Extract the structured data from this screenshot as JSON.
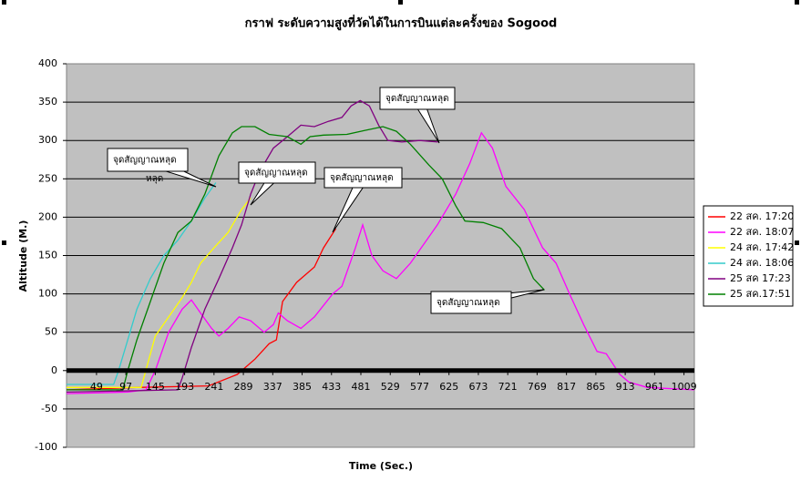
{
  "chart_data": {
    "type": "line",
    "title": "กราฟ ระดับความสูงที่วัดได้ในการบินแต่ละครั้งของ Sogood",
    "x_label": "Time (Sec.)",
    "y_label": "Altitude (M.)",
    "xlim": [
      0,
      1026
    ],
    "ylim": [
      -100,
      400
    ],
    "xticks": [
      49,
      97,
      145,
      193,
      241,
      289,
      337,
      385,
      433,
      481,
      529,
      577,
      625,
      673,
      721,
      769,
      817,
      865,
      913,
      961,
      1009
    ],
    "yticks": [
      -100,
      -50,
      0,
      50,
      100,
      150,
      200,
      250,
      300,
      350,
      400
    ],
    "grid": true,
    "legend": "right",
    "series": [
      {
        "name": "22 สค. 17:20",
        "color": "#ff0000",
        "x": [
          0,
          115,
          232,
          279,
          308,
          331,
          343,
          353,
          376,
          405,
          420,
          440
        ],
        "values": [
          -25,
          -22,
          -20,
          -5,
          15,
          35,
          40,
          90,
          115,
          135,
          160,
          185
        ]
      },
      {
        "name": "22 สค. 18:07",
        "color": "#ff00ff",
        "x": [
          0,
          100,
          130,
          145,
          167,
          189,
          204,
          219,
          237,
          249,
          264,
          282,
          301,
          323,
          338,
          346,
          361,
          383,
          405,
          435,
          450,
          472,
          484,
          499,
          517,
          539,
          562,
          606,
          636,
          659,
          678,
          696,
          718,
          748,
          778,
          800,
          822,
          845,
          867,
          882,
          904,
          919,
          949,
          1026
        ],
        "values": [
          -30,
          -28,
          -25,
          0,
          50,
          80,
          92,
          75,
          55,
          45,
          55,
          70,
          65,
          50,
          60,
          75,
          65,
          55,
          70,
          100,
          110,
          160,
          190,
          150,
          130,
          120,
          140,
          190,
          230,
          270,
          310,
          290,
          240,
          210,
          160,
          140,
          100,
          60,
          25,
          22,
          -5,
          -15,
          -22,
          -25
        ]
      },
      {
        "name": "24 สค. 17:42",
        "color": "#ffff00",
        "x": [
          0,
          122,
          133,
          145,
          167,
          189,
          204,
          219,
          241,
          264,
          286,
          301
        ],
        "values": [
          -22,
          -22,
          10,
          45,
          70,
          95,
          115,
          140,
          160,
          180,
          210,
          225
        ]
      },
      {
        "name": "24 สค. 18:06",
        "color": "#33cccc",
        "x": [
          0,
          77,
          85,
          100,
          115,
          137,
          159,
          182,
          204,
          226,
          244
        ],
        "values": [
          -18,
          -18,
          0,
          40,
          80,
          120,
          150,
          170,
          195,
          225,
          245
        ]
      },
      {
        "name": "25 สค 17:23",
        "color": "#800080",
        "x": [
          0,
          182,
          189,
          204,
          226,
          249,
          271,
          286,
          301,
          316,
          338,
          361,
          383,
          405,
          428,
          450,
          465,
          480,
          495,
          510,
          525,
          548,
          577,
          607
        ],
        "values": [
          -28,
          -25,
          -10,
          30,
          80,
          120,
          160,
          190,
          230,
          260,
          290,
          305,
          320,
          318,
          325,
          330,
          345,
          352,
          345,
          320,
          300,
          298,
          300,
          298
        ]
      },
      {
        "name": "25 สค.17:51",
        "color": "#008000",
        "x": [
          0,
          92,
          100,
          115,
          137,
          159,
          182,
          204,
          226,
          249,
          271,
          286,
          308,
          331,
          361,
          383,
          398,
          420,
          458,
          487,
          517,
          539,
          562,
          592,
          614,
          636,
          651,
          681,
          711,
          741,
          763,
          781
        ],
        "values": [
          -25,
          -25,
          0,
          40,
          90,
          140,
          180,
          195,
          230,
          280,
          310,
          318,
          318,
          308,
          305,
          295,
          305,
          307,
          308,
          313,
          318,
          312,
          295,
          268,
          250,
          215,
          195,
          193,
          185,
          160,
          120,
          105
        ]
      }
    ],
    "annotations": [
      "จุดสัญญาณหลุด",
      "จุดสัญญาณหลุด",
      "จุดสัญญาณหลุด",
      "จุดสัญญาณหลุด",
      "จุดสัญญาณหลุด",
      "หลุด"
    ]
  }
}
